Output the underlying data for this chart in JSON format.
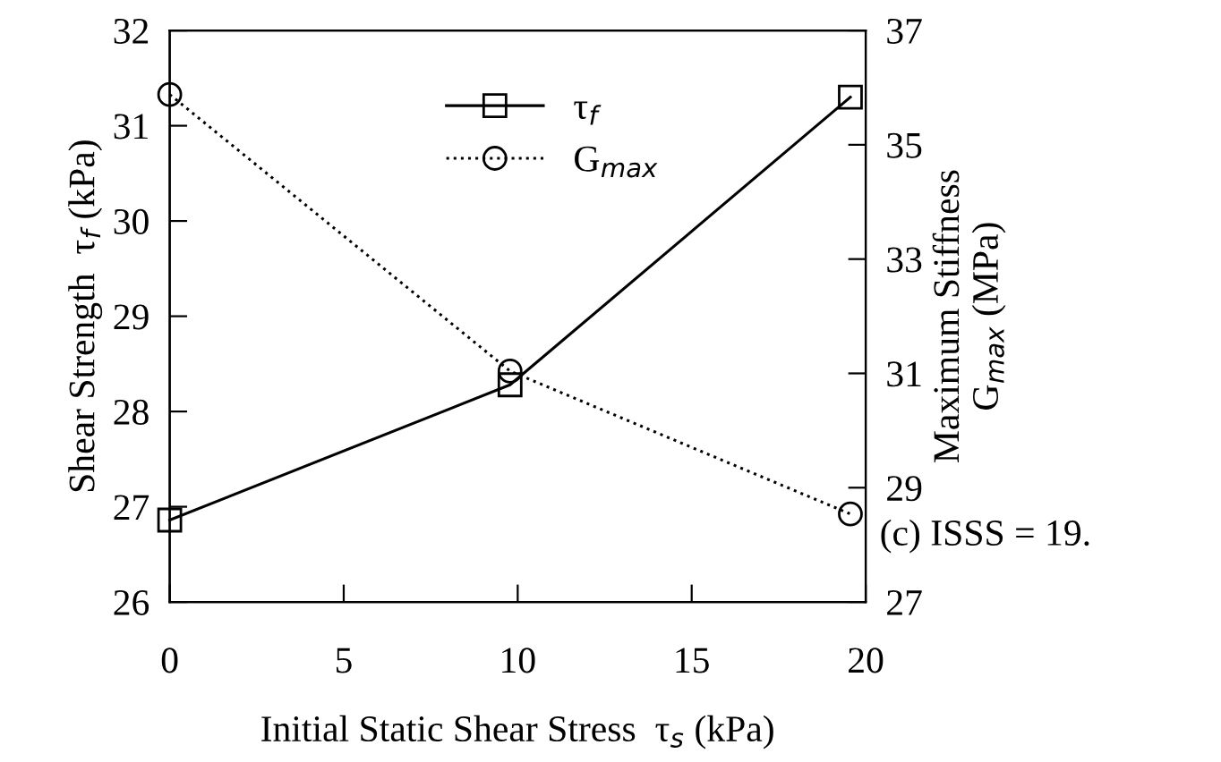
{
  "chart_data": {
    "type": "line",
    "xlabel": "Initial Static Shear Stress  τ$_{s}$ (kPa)",
    "ylabel": "Shear Strength  τ$_{f}$ (kPa)",
    "y2label": "Maximum Stiffness\nG$_{max}$ (MPa)",
    "x": [
      0,
      9.78,
      19.56
    ],
    "series": [
      {
        "name": "τ$_{f}$",
        "color": "#000000",
        "values": [
          26.86,
          28.28,
          31.3
        ],
        "marker": "square",
        "line_style": "solid"
      },
      {
        "name": "G$_{max}$",
        "color": "#000000",
        "values": [
          35.88,
          31.04,
          28.54
        ],
        "marker": "circle",
        "line_style": "dotted",
        "axis": "y2"
      }
    ],
    "xlim": [
      0,
      20
    ],
    "xticks": [
      0,
      5,
      10,
      15,
      20
    ],
    "ylim": [
      26,
      32
    ],
    "yticks": [
      26,
      27,
      28,
      29,
      30,
      31,
      32
    ],
    "y2lim": [
      27,
      37
    ],
    "y2ticks": [
      27,
      29,
      31,
      33,
      35,
      37
    ],
    "grid": false,
    "legend": "top",
    "annotations": [
      "(c) ISSS = 19."
    ]
  }
}
